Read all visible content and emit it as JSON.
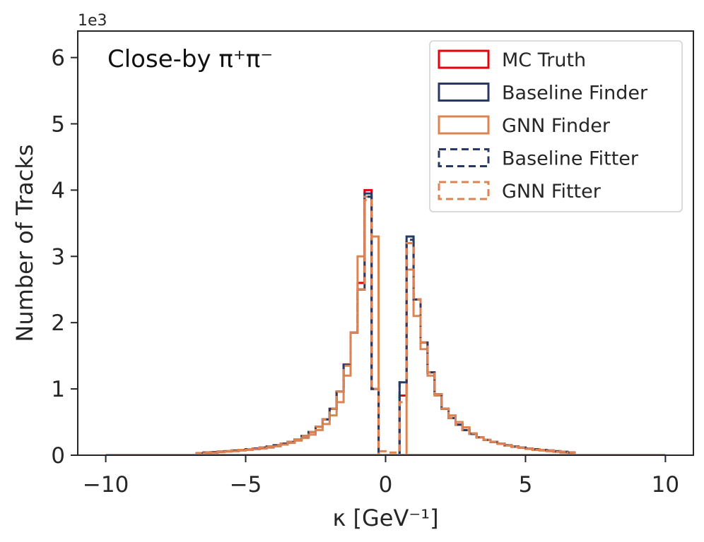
{
  "chart_data": {
    "type": "histogram-step",
    "annotation": "Close-by π⁺π⁻",
    "xlabel": "κ [GeV⁻¹]",
    "ylabel": "Number of Tracks",
    "y_multiplier": "1e3",
    "xlim": [
      -11,
      11
    ],
    "ylim": [
      0,
      6400
    ],
    "xticks": [
      -10,
      -5,
      0,
      5,
      10
    ],
    "xtick_labels": [
      "−10",
      "−5",
      "0",
      "5",
      "10"
    ],
    "yticks": [
      0,
      1000,
      2000,
      3000,
      4000,
      5000,
      6000
    ],
    "ytick_labels": [
      "0",
      "1",
      "2",
      "3",
      "4",
      "5",
      "6"
    ],
    "grid": false,
    "legend_position": "top-right",
    "bin_width": 0.25,
    "series": [
      {
        "name": "MC Truth",
        "color": "#e8000b",
        "style": "solid",
        "bins": [
          [
            -6.75,
            30
          ],
          [
            -6.5,
            40
          ],
          [
            -6.25,
            45
          ],
          [
            -6,
            55
          ],
          [
            -5.75,
            60
          ],
          [
            -5.5,
            70
          ],
          [
            -5.25,
            80
          ],
          [
            -5,
            90
          ],
          [
            -4.75,
            100
          ],
          [
            -4.5,
            115
          ],
          [
            -4.25,
            130
          ],
          [
            -4,
            150
          ],
          [
            -3.75,
            175
          ],
          [
            -3.5,
            200
          ],
          [
            -3.25,
            240
          ],
          [
            -3,
            290
          ],
          [
            -2.75,
            350
          ],
          [
            -2.5,
            430
          ],
          [
            -2.25,
            540
          ],
          [
            -2,
            700
          ],
          [
            -1.75,
            960
          ],
          [
            -1.5,
            1370
          ],
          [
            -1.25,
            1850
          ],
          [
            -1,
            2600
          ],
          [
            -0.75,
            4000
          ],
          [
            -0.5,
            1000
          ],
          [
            0.5,
            900
          ],
          [
            0.75,
            3200
          ],
          [
            1,
            2350
          ],
          [
            1.25,
            1700
          ],
          [
            1.5,
            1250
          ],
          [
            1.75,
            920
          ],
          [
            2,
            700
          ],
          [
            2.25,
            560
          ],
          [
            2.5,
            460
          ],
          [
            2.75,
            380
          ],
          [
            3,
            320
          ],
          [
            3.25,
            270
          ],
          [
            3.5,
            230
          ],
          [
            3.75,
            200
          ],
          [
            4,
            175
          ],
          [
            4.25,
            150
          ],
          [
            4.5,
            130
          ],
          [
            4.75,
            115
          ],
          [
            5,
            100
          ],
          [
            5.25,
            90
          ],
          [
            5.5,
            80
          ],
          [
            5.75,
            70
          ],
          [
            6,
            60
          ],
          [
            6.25,
            50
          ],
          [
            6.5,
            40
          ]
        ]
      },
      {
        "name": "Baseline Finder",
        "color": "#283a63",
        "style": "solid",
        "bins": [
          [
            -6.75,
            30
          ],
          [
            -6.5,
            40
          ],
          [
            -6.25,
            45
          ],
          [
            -6,
            55
          ],
          [
            -5.75,
            60
          ],
          [
            -5.5,
            70
          ],
          [
            -5.25,
            80
          ],
          [
            -5,
            90
          ],
          [
            -4.75,
            100
          ],
          [
            -4.5,
            115
          ],
          [
            -4.25,
            130
          ],
          [
            -4,
            150
          ],
          [
            -3.75,
            175
          ],
          [
            -3.5,
            200
          ],
          [
            -3.25,
            240
          ],
          [
            -3,
            290
          ],
          [
            -2.75,
            350
          ],
          [
            -2.5,
            430
          ],
          [
            -2.25,
            540
          ],
          [
            -2,
            700
          ],
          [
            -1.75,
            960
          ],
          [
            -1.5,
            1360
          ],
          [
            -1.25,
            1850
          ],
          [
            -1,
            2500
          ],
          [
            -0.75,
            3950
          ],
          [
            -0.5,
            1000
          ],
          [
            0.5,
            1100
          ],
          [
            0.75,
            3300
          ],
          [
            1,
            2350
          ],
          [
            1.25,
            1700
          ],
          [
            1.5,
            1250
          ],
          [
            1.75,
            920
          ],
          [
            2,
            700
          ],
          [
            2.25,
            560
          ],
          [
            2.5,
            460
          ],
          [
            2.75,
            380
          ],
          [
            3,
            320
          ],
          [
            3.25,
            270
          ],
          [
            3.5,
            230
          ],
          [
            3.75,
            200
          ],
          [
            4,
            175
          ],
          [
            4.25,
            150
          ],
          [
            4.5,
            130
          ],
          [
            4.75,
            115
          ],
          [
            5,
            100
          ],
          [
            5.25,
            90
          ],
          [
            5.5,
            80
          ],
          [
            5.75,
            70
          ],
          [
            6,
            60
          ],
          [
            6.25,
            50
          ],
          [
            6.5,
            40
          ]
        ]
      },
      {
        "name": "GNN Finder",
        "color": "#dd8452",
        "style": "solid",
        "bins": [
          [
            -6.5,
            30
          ],
          [
            -6.25,
            35
          ],
          [
            -6,
            45
          ],
          [
            -5.75,
            55
          ],
          [
            -5.5,
            60
          ],
          [
            -5.25,
            70
          ],
          [
            -5,
            80
          ],
          [
            -4.75,
            90
          ],
          [
            -4.5,
            100
          ],
          [
            -4.25,
            115
          ],
          [
            -4,
            135
          ],
          [
            -3.75,
            160
          ],
          [
            -3.5,
            185
          ],
          [
            -3.25,
            220
          ],
          [
            -3,
            260
          ],
          [
            -2.75,
            310
          ],
          [
            -2.5,
            380
          ],
          [
            -2.25,
            470
          ],
          [
            -2,
            600
          ],
          [
            -1.75,
            800
          ],
          [
            -1.5,
            1200
          ],
          [
            -1.25,
            1850
          ],
          [
            -1,
            3000
          ],
          [
            -0.75,
            3900
          ],
          [
            -0.5,
            3300
          ],
          [
            0.75,
            2800
          ],
          [
            1,
            2100
          ],
          [
            1.25,
            1600
          ],
          [
            1.5,
            1200
          ],
          [
            1.75,
            900
          ],
          [
            2,
            700
          ],
          [
            2.25,
            600
          ],
          [
            2.5,
            500
          ],
          [
            2.75,
            420
          ],
          [
            3,
            330
          ],
          [
            3.25,
            270
          ],
          [
            3.5,
            230
          ],
          [
            3.75,
            200
          ],
          [
            4,
            170
          ],
          [
            4.25,
            145
          ],
          [
            4.5,
            125
          ],
          [
            4.75,
            110
          ],
          [
            5,
            95
          ],
          [
            5.25,
            80
          ],
          [
            5.5,
            70
          ],
          [
            5.75,
            60
          ],
          [
            6,
            50
          ],
          [
            6.25,
            40
          ]
        ]
      },
      {
        "name": "Baseline Fitter",
        "color": "#283a63",
        "style": "dashed",
        "bins": [
          [
            -6.75,
            30
          ],
          [
            -6.5,
            40
          ],
          [
            -6.25,
            45
          ],
          [
            -6,
            55
          ],
          [
            -5.75,
            60
          ],
          [
            -5.5,
            70
          ],
          [
            -5.25,
            80
          ],
          [
            -5,
            90
          ],
          [
            -4.75,
            100
          ],
          [
            -4.5,
            115
          ],
          [
            -4.25,
            130
          ],
          [
            -4,
            150
          ],
          [
            -3.75,
            175
          ],
          [
            -3.5,
            200
          ],
          [
            -3.25,
            240
          ],
          [
            -3,
            290
          ],
          [
            -2.75,
            350
          ],
          [
            -2.5,
            430
          ],
          [
            -2.25,
            540
          ],
          [
            -2,
            700
          ],
          [
            -1.75,
            960
          ],
          [
            -1.5,
            1360
          ],
          [
            -1.25,
            1850
          ],
          [
            -1,
            2500
          ],
          [
            -0.75,
            3900
          ],
          [
            -0.5,
            1000
          ],
          [
            0.5,
            1100
          ],
          [
            0.75,
            3250
          ],
          [
            1,
            2350
          ],
          [
            1.25,
            1700
          ],
          [
            1.5,
            1250
          ],
          [
            1.75,
            920
          ],
          [
            2,
            700
          ],
          [
            2.25,
            560
          ],
          [
            2.5,
            460
          ],
          [
            2.75,
            380
          ],
          [
            3,
            320
          ],
          [
            3.25,
            270
          ],
          [
            3.5,
            230
          ],
          [
            3.75,
            200
          ],
          [
            4,
            175
          ],
          [
            4.25,
            150
          ],
          [
            4.5,
            130
          ],
          [
            4.75,
            115
          ],
          [
            5,
            100
          ],
          [
            5.25,
            90
          ],
          [
            5.5,
            80
          ],
          [
            5.75,
            70
          ],
          [
            6,
            60
          ],
          [
            6.25,
            50
          ],
          [
            6.5,
            40
          ]
        ]
      },
      {
        "name": "GNN Fitter",
        "color": "#dd8452",
        "style": "dashed",
        "bins": [
          [
            -6.75,
            30
          ],
          [
            -6.5,
            40
          ],
          [
            -6.25,
            45
          ],
          [
            -6,
            55
          ],
          [
            -5.75,
            60
          ],
          [
            -5.5,
            70
          ],
          [
            -5.25,
            80
          ],
          [
            -5,
            90
          ],
          [
            -4.75,
            100
          ],
          [
            -4.5,
            115
          ],
          [
            -4.25,
            130
          ],
          [
            -4,
            150
          ],
          [
            -3.75,
            175
          ],
          [
            -3.5,
            200
          ],
          [
            -3.25,
            240
          ],
          [
            -3,
            290
          ],
          [
            -2.75,
            350
          ],
          [
            -2.5,
            430
          ],
          [
            -2.25,
            540
          ],
          [
            -2,
            700
          ],
          [
            -1.75,
            960
          ],
          [
            -1.5,
            1350
          ],
          [
            -1.25,
            1850
          ],
          [
            -1,
            2500
          ],
          [
            -0.75,
            3850
          ],
          [
            -0.5,
            1000
          ],
          [
            -0.25,
            60
          ],
          [
            0,
            40
          ],
          [
            0.25,
            40
          ],
          [
            0.5,
            800
          ],
          [
            0.75,
            3200
          ],
          [
            1,
            2350
          ],
          [
            1.25,
            1700
          ],
          [
            1.5,
            1250
          ],
          [
            1.75,
            920
          ],
          [
            2,
            700
          ],
          [
            2.25,
            560
          ],
          [
            2.5,
            460
          ],
          [
            2.75,
            380
          ],
          [
            3,
            320
          ],
          [
            3.25,
            270
          ],
          [
            3.5,
            230
          ],
          [
            3.75,
            200
          ],
          [
            4,
            175
          ],
          [
            4.25,
            150
          ],
          [
            4.5,
            130
          ],
          [
            4.75,
            115
          ],
          [
            5,
            100
          ],
          [
            5.25,
            90
          ],
          [
            5.5,
            80
          ],
          [
            5.75,
            70
          ],
          [
            6,
            60
          ],
          [
            6.25,
            50
          ],
          [
            6.5,
            40
          ]
        ]
      }
    ]
  }
}
